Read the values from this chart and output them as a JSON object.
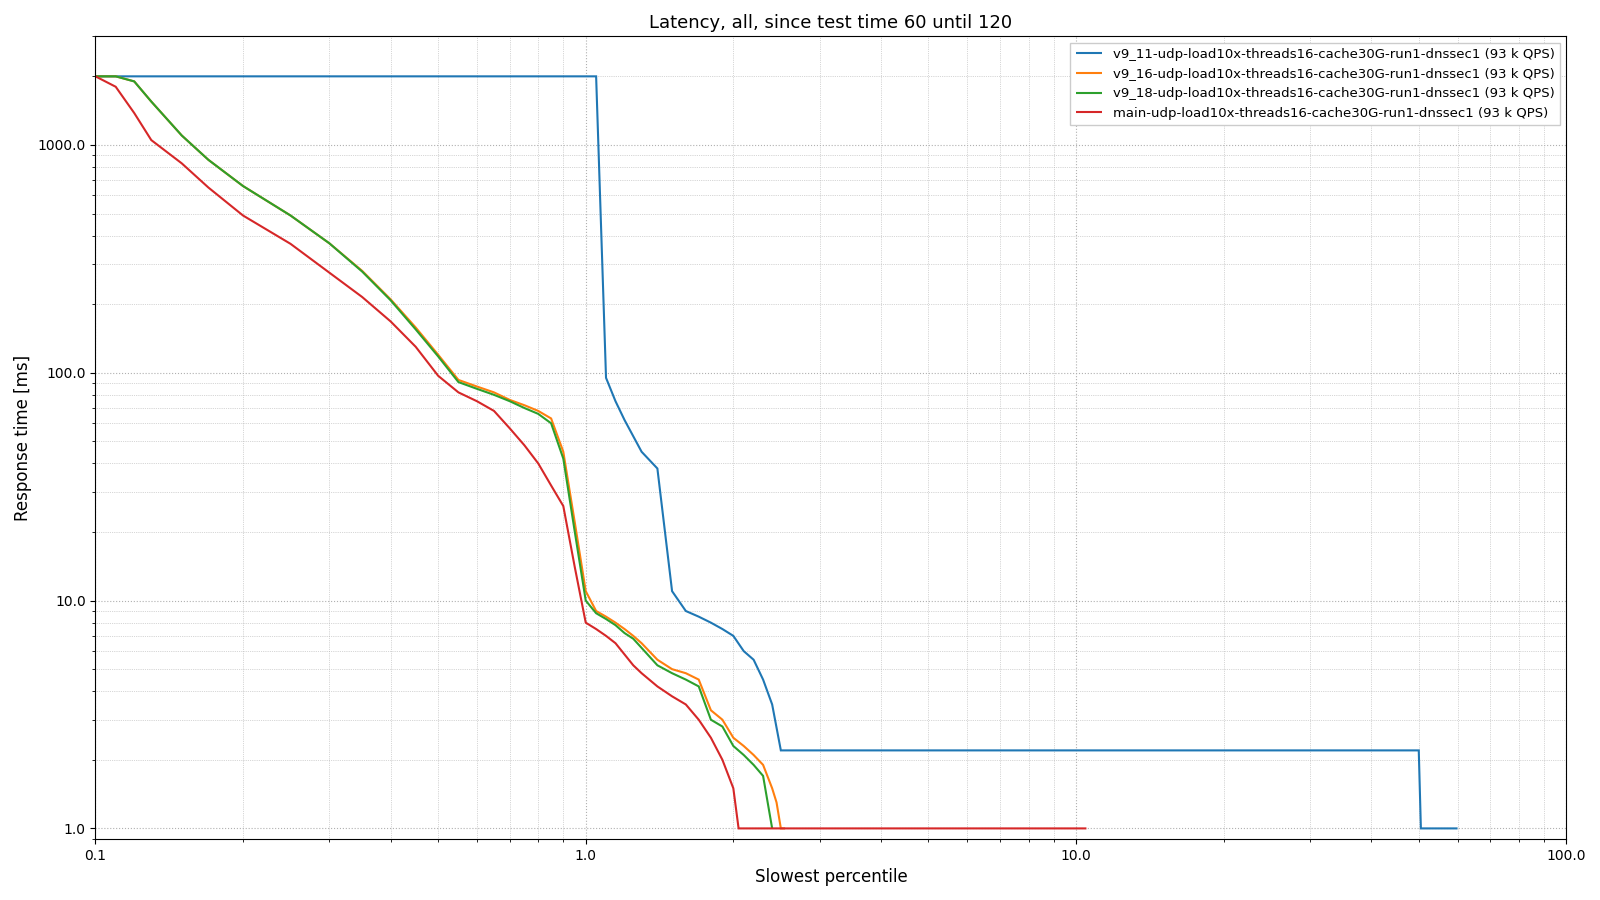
{
  "title": "Latency, all, since test time 60 until 120",
  "xlabel": "Slowest percentile",
  "ylabel": "Response time [ms]",
  "xlim": [
    0.1,
    100.0
  ],
  "ylim": [
    0.9,
    3000.0
  ],
  "legend_labels": [
    "v9_11-udp-load10x-threads16-cache30G-run1-dnssec1 (93 k QPS)",
    "v9_16-udp-load10x-threads16-cache30G-run1-dnssec1 (93 k QPS)",
    "v9_18-udp-load10x-threads16-cache30G-run1-dnssec1 (93 k QPS)",
    "main-udp-load10x-threads16-cache30G-run1-dnssec1 (93 k QPS)"
  ],
  "colors": [
    "#1f77b4",
    "#ff7f0e",
    "#2ca02c",
    "#d62728"
  ],
  "line_width": 1.5,
  "grid_color": "#b0b0b0",
  "grid_style": "dotted",
  "bg_color": "#ffffff",
  "ytick_labels": [
    "1.0",
    "10.0",
    "100.0",
    "1000.0"
  ],
  "ytick_values": [
    1.0,
    10.0,
    100.0,
    1000.0
  ],
  "xtick_labels": [
    "0.1",
    "1.0",
    "10.0",
    "100.0"
  ],
  "xtick_values": [
    0.1,
    1.0,
    10.0,
    100.0
  ],
  "series": {
    "v9_11": {
      "x": [
        0.1,
        0.105,
        0.11,
        0.12,
        0.13,
        0.14,
        0.15,
        0.17,
        0.2,
        0.25,
        0.3,
        0.35,
        0.4,
        0.45,
        0.5,
        0.55,
        0.6,
        0.605,
        0.65,
        0.7,
        0.75,
        0.8,
        0.85,
        0.9,
        0.95,
        1.0,
        1.05,
        1.1,
        1.15,
        1.2,
        1.3,
        1.4,
        1.5,
        1.6,
        1.7,
        1.8,
        1.9,
        2.0,
        2.1,
        2.2,
        2.3,
        2.4,
        2.5,
        3.0,
        50.0,
        50.5,
        55.0,
        60.0
      ],
      "y": [
        2000,
        2000,
        2000,
        2000,
        2000,
        2000,
        2000,
        2000,
        2000,
        2000,
        2000,
        2000,
        2000,
        2000,
        2000,
        2000,
        2000,
        2000,
        2000,
        2000,
        2000,
        2000,
        2000,
        2000,
        2000,
        2000,
        2000,
        95,
        75,
        62,
        45,
        38,
        11,
        9.0,
        8.5,
        8.0,
        7.5,
        7.0,
        6.0,
        5.5,
        4.5,
        3.5,
        2.2,
        2.2,
        2.2,
        1.0,
        1.0,
        1.0
      ]
    },
    "v9_16": {
      "x": [
        0.1,
        0.11,
        0.12,
        0.13,
        0.15,
        0.17,
        0.2,
        0.25,
        0.3,
        0.35,
        0.4,
        0.45,
        0.5,
        0.55,
        0.6,
        0.65,
        0.7,
        0.75,
        0.8,
        0.85,
        0.9,
        0.95,
        1.0,
        1.05,
        1.1,
        1.15,
        1.2,
        1.25,
        1.3,
        1.4,
        1.5,
        1.6,
        1.7,
        1.8,
        1.9,
        2.0,
        2.1,
        2.2,
        2.3,
        2.4,
        2.45,
        2.5,
        2.55
      ],
      "y": [
        2000,
        2000,
        1900,
        1550,
        1100,
        860,
        660,
        490,
        370,
        280,
        210,
        158,
        120,
        93,
        87,
        82,
        76,
        72,
        68,
        63,
        45,
        22,
        11,
        9.0,
        8.5,
        8.0,
        7.5,
        7.0,
        6.5,
        5.5,
        5.0,
        4.8,
        4.5,
        3.3,
        3.0,
        2.5,
        2.3,
        2.1,
        1.9,
        1.5,
        1.3,
        1.0,
        1.0
      ]
    },
    "v9_18": {
      "x": [
        0.1,
        0.11,
        0.12,
        0.13,
        0.15,
        0.17,
        0.2,
        0.25,
        0.3,
        0.35,
        0.4,
        0.45,
        0.5,
        0.55,
        0.6,
        0.65,
        0.7,
        0.75,
        0.8,
        0.85,
        0.9,
        0.95,
        1.0,
        1.05,
        1.1,
        1.15,
        1.2,
        1.25,
        1.3,
        1.4,
        1.5,
        1.6,
        1.7,
        1.8,
        1.9,
        2.0,
        2.1,
        2.2,
        2.3,
        2.35,
        2.4
      ],
      "y": [
        2000,
        2000,
        1900,
        1550,
        1100,
        860,
        660,
        490,
        370,
        278,
        208,
        155,
        118,
        91,
        85,
        80,
        75,
        70,
        66,
        60,
        42,
        20,
        10,
        8.8,
        8.3,
        7.8,
        7.2,
        6.8,
        6.2,
        5.2,
        4.8,
        4.5,
        4.2,
        3.0,
        2.8,
        2.3,
        2.1,
        1.9,
        1.7,
        1.3,
        1.0
      ]
    },
    "main": {
      "x": [
        0.1,
        0.11,
        0.12,
        0.13,
        0.15,
        0.17,
        0.2,
        0.25,
        0.3,
        0.35,
        0.4,
        0.45,
        0.5,
        0.55,
        0.6,
        0.65,
        0.7,
        0.75,
        0.8,
        0.85,
        0.9,
        0.95,
        1.0,
        1.05,
        1.1,
        1.15,
        1.2,
        1.25,
        1.3,
        1.4,
        1.5,
        1.6,
        1.7,
        1.8,
        1.9,
        2.0,
        2.05,
        2.1,
        10.0,
        10.5
      ],
      "y": [
        2000,
        1800,
        1380,
        1050,
        830,
        650,
        490,
        368,
        275,
        215,
        168,
        130,
        97,
        82,
        75,
        68,
        57,
        48,
        40,
        32,
        26,
        14,
        8.0,
        7.5,
        7.0,
        6.5,
        5.8,
        5.2,
        4.8,
        4.2,
        3.8,
        3.5,
        3.0,
        2.5,
        2.0,
        1.5,
        1.0,
        1.0,
        1.0,
        1.0
      ]
    }
  }
}
